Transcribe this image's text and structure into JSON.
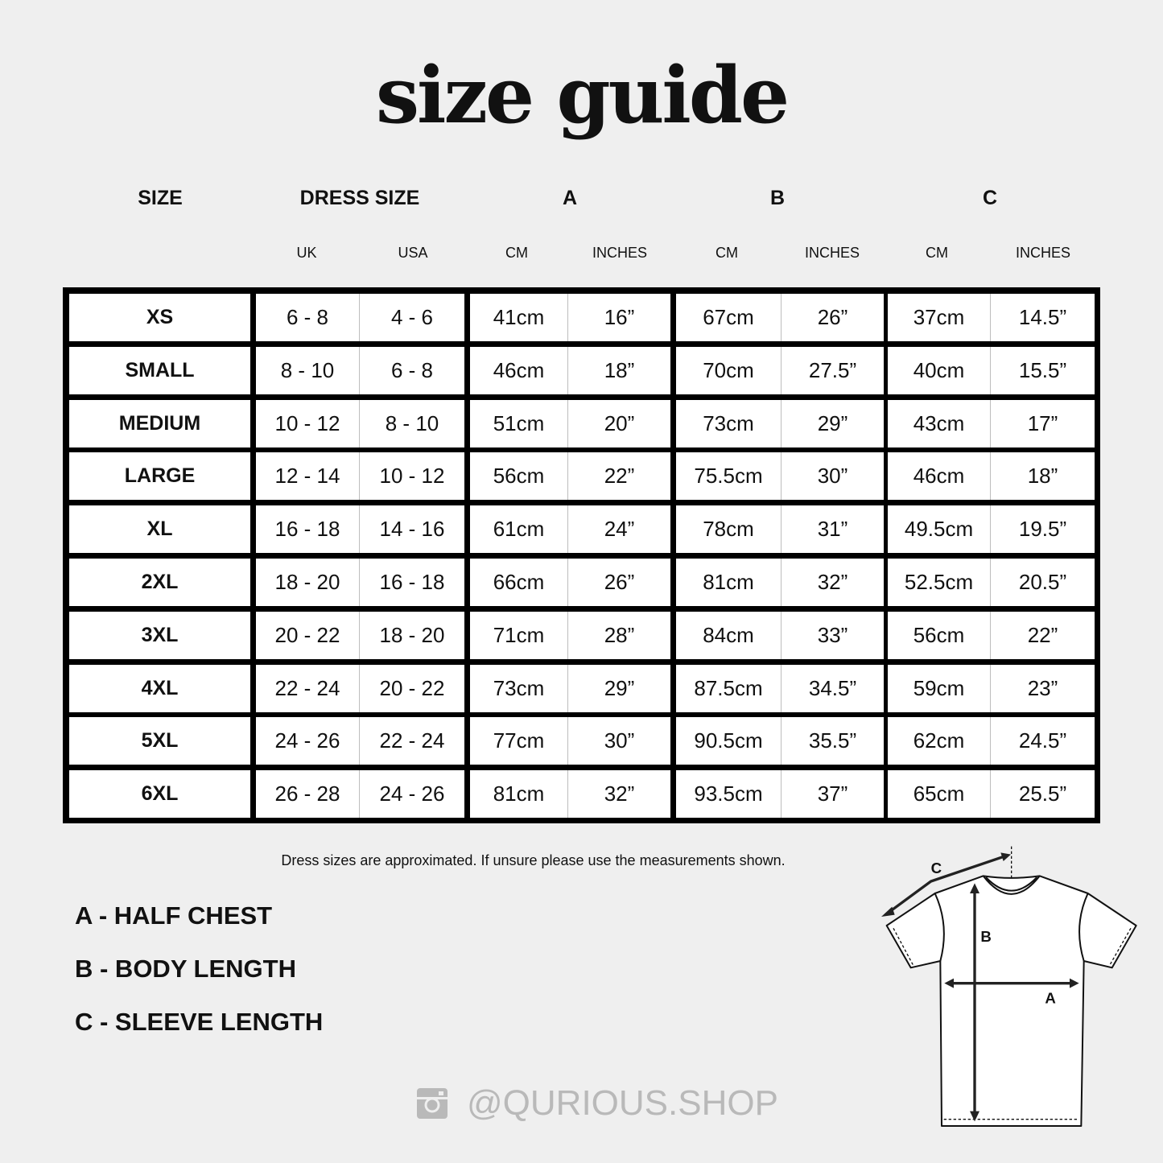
{
  "title": "size guide",
  "headers": {
    "size": "SIZE",
    "dress_size": "DRESS SIZE",
    "a": "A",
    "b": "B",
    "c": "C"
  },
  "subheaders": {
    "uk": "UK",
    "usa": "USA",
    "a_cm": "CM",
    "a_in": "INCHES",
    "b_cm": "CM",
    "b_in": "INCHES",
    "c_cm": "CM",
    "c_in": "INCHES"
  },
  "rows": [
    [
      "XS",
      "6 - 8",
      "4 - 6",
      "41cm",
      "16”",
      "67cm",
      "26”",
      "37cm",
      "14.5”"
    ],
    [
      "SMALL",
      "8 - 10",
      "6 - 8",
      "46cm",
      "18”",
      "70cm",
      "27.5”",
      "40cm",
      "15.5”"
    ],
    [
      "MEDIUM",
      "10 - 12",
      "8 - 10",
      "51cm",
      "20”",
      "73cm",
      "29”",
      "43cm",
      "17”"
    ],
    [
      "LARGE",
      "12 - 14",
      "10 - 12",
      "56cm",
      "22”",
      "75.5cm",
      "30”",
      "46cm",
      "18”"
    ],
    [
      "XL",
      "16 - 18",
      "14 - 16",
      "61cm",
      "24”",
      "78cm",
      "31”",
      "49.5cm",
      "19.5”"
    ],
    [
      "2XL",
      "18 - 20",
      "16 - 18",
      "66cm",
      "26”",
      "81cm",
      "32”",
      "52.5cm",
      "20.5”"
    ],
    [
      "3XL",
      "20 - 22",
      "18 - 20",
      "71cm",
      "28”",
      "84cm",
      "33”",
      "56cm",
      "22”"
    ],
    [
      "4XL",
      "22 - 24",
      "20 - 22",
      "73cm",
      "29”",
      "87.5cm",
      "34.5”",
      "59cm",
      "23”"
    ],
    [
      "5XL",
      "24 - 26",
      "22 - 24",
      "77cm",
      "30”",
      "90.5cm",
      "35.5”",
      "62cm",
      "24.5”"
    ],
    [
      "6XL",
      "26 - 28",
      "24 - 26",
      "81cm",
      "32”",
      "93.5cm",
      "37”",
      "65cm",
      "25.5”"
    ]
  ],
  "note": "Dress sizes are approximated. If unsure please use the measurements shown.",
  "legend": [
    "A - HALF CHEST",
    "B - BODY LENGTH",
    "C - SLEEVE LENGTH"
  ],
  "diagram_labels": {
    "a": "A",
    "b": "B",
    "c": "C"
  },
  "social": {
    "icon": "instagram-icon",
    "handle": "@QURIOUS.SHOP"
  },
  "colors": {
    "background": "#efefef",
    "border": "#000000",
    "divider": "#bdbdbd",
    "social": "#b9b9b9"
  }
}
